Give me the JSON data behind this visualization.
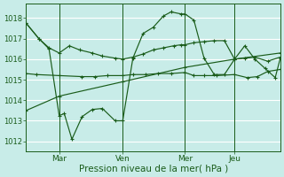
{
  "bg_color": "#c8ece8",
  "grid_color": "#aadddd",
  "line_color": "#1a5c1a",
  "xlabel": "Pression niveau de la mer( hPa )",
  "xlabel_fontsize": 7.5,
  "ylim": [
    1011.5,
    1018.7
  ],
  "yticks": [
    1012,
    1013,
    1014,
    1015,
    1016,
    1017,
    1018
  ],
  "xtick_labels": [
    "Mar",
    "Ven",
    "Mer",
    "Jeu"
  ],
  "xtick_positions": [
    0.13,
    0.38,
    0.625,
    0.82
  ],
  "vline_positions": [
    0.13,
    0.38,
    0.625,
    0.82
  ],
  "series1_x": [
    0.0,
    0.13,
    0.38,
    0.625,
    0.82,
    1.0
  ],
  "series1_y": [
    1013.5,
    1014.2,
    1014.9,
    1015.6,
    1016.0,
    1016.3
  ],
  "series2_x": [
    0.0,
    0.04,
    0.13,
    0.22,
    0.27,
    0.32,
    0.38,
    0.42,
    0.47,
    0.52,
    0.57,
    0.625,
    0.66,
    0.7,
    0.75,
    0.82,
    0.87,
    0.91,
    0.95,
    1.0
  ],
  "series2_y": [
    1015.3,
    1015.25,
    1015.2,
    1015.15,
    1015.15,
    1015.2,
    1015.2,
    1015.25,
    1015.25,
    1015.3,
    1015.3,
    1015.35,
    1015.2,
    1015.2,
    1015.2,
    1015.25,
    1015.1,
    1015.15,
    1015.4,
    1015.5
  ],
  "series3_x": [
    0.0,
    0.05,
    0.09,
    0.13,
    0.17,
    0.21,
    0.26,
    0.3,
    0.35,
    0.38,
    0.42,
    0.46,
    0.5,
    0.54,
    0.58,
    0.61,
    0.625,
    0.66,
    0.7,
    0.74,
    0.78,
    0.82,
    0.86,
    0.9,
    0.95,
    1.0
  ],
  "series3_y": [
    1017.75,
    1017.0,
    1016.55,
    1016.3,
    1016.65,
    1016.45,
    1016.3,
    1016.15,
    1016.05,
    1016.0,
    1016.1,
    1016.25,
    1016.45,
    1016.55,
    1016.65,
    1016.7,
    1016.7,
    1016.8,
    1016.85,
    1016.9,
    1016.9,
    1016.0,
    1016.05,
    1016.1,
    1015.9,
    1016.1
  ],
  "series4_x": [
    0.0,
    0.05,
    0.09,
    0.13,
    0.15,
    0.18,
    0.22,
    0.26,
    0.3,
    0.35,
    0.38,
    0.42,
    0.46,
    0.5,
    0.54,
    0.57,
    0.61,
    0.625,
    0.66,
    0.7,
    0.74,
    0.78,
    0.82,
    0.86,
    0.9,
    0.94,
    0.98,
    1.0
  ],
  "series4_y": [
    1017.75,
    1017.0,
    1016.5,
    1013.25,
    1013.35,
    1012.1,
    1013.2,
    1013.55,
    1013.6,
    1013.0,
    1013.0,
    1016.05,
    1017.25,
    1017.55,
    1018.1,
    1018.3,
    1018.2,
    1018.2,
    1017.9,
    1016.05,
    1015.25,
    1015.25,
    1016.0,
    1016.65,
    1016.0,
    1015.55,
    1015.1,
    1016.05
  ]
}
